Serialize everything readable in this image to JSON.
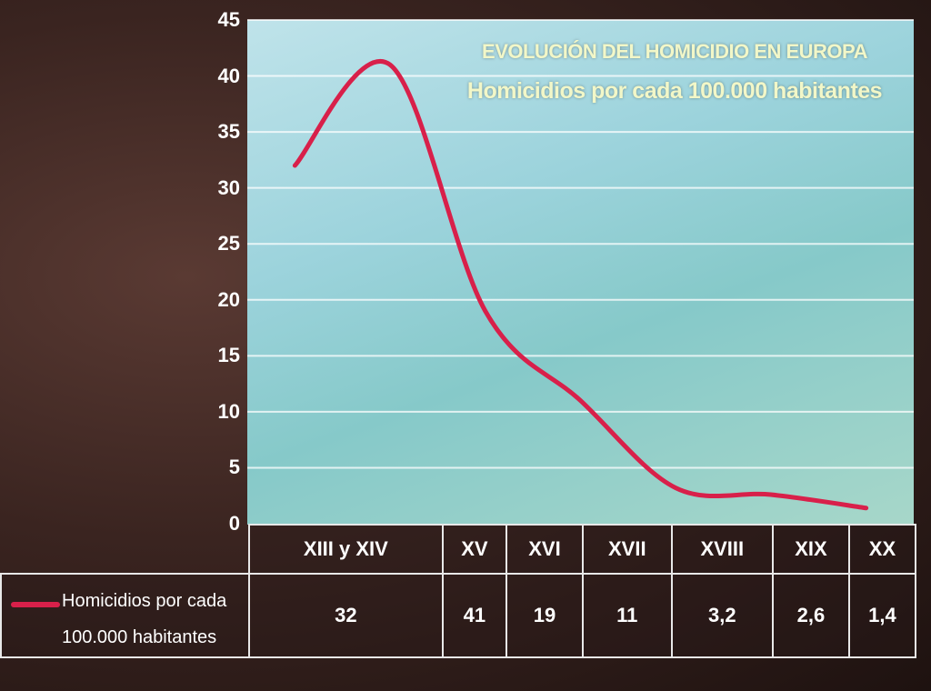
{
  "chart_data": {
    "type": "line",
    "title": "EVOLUCIÓN DEL HOMICIDIO EN EUROPA",
    "subtitle": "Homicidios por cada 100.000 habitantes",
    "categories": [
      "XIII y XIV",
      "XV",
      "XVI",
      "XVII",
      "XVIII",
      "XIX",
      "XX"
    ],
    "series": [
      {
        "name": "Homicidios por cada 100.000 habitantes",
        "name_lines": [
          "Homicidios por cada",
          "100.000 habitantes"
        ],
        "values": [
          32,
          41,
          19,
          11,
          3.2,
          2.6,
          1.4
        ],
        "labels": [
          "32",
          "41",
          "19",
          "11",
          "3,2",
          "2,6",
          "1,4"
        ],
        "color": "#d8204a"
      }
    ],
    "ylim": [
      0,
      45
    ],
    "yticks": [
      0,
      5,
      10,
      15,
      20,
      25,
      30,
      35,
      40,
      45
    ],
    "grid": true,
    "legend": "bottom-left"
  }
}
